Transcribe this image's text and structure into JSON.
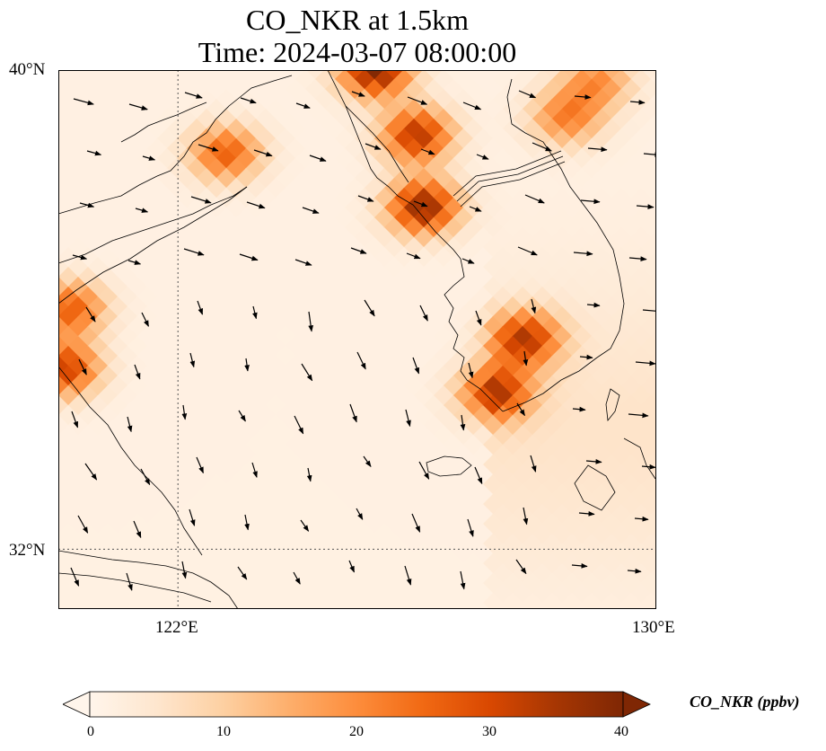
{
  "title_line1": "CO_NKR at 1.5km",
  "title_line2": "Time: 2024-03-07 08:00:00",
  "map": {
    "lat_ticks": [
      {
        "value": 40,
        "label": "40°N"
      },
      {
        "value": 32,
        "label": "32°N"
      }
    ],
    "lon_ticks": [
      {
        "value": 122,
        "label": "122°E"
      },
      {
        "value": 130,
        "label": "130°E"
      }
    ],
    "extent": {
      "lon_min": 120,
      "lon_max": 130,
      "lat_min": 31,
      "lat_max": 40
    },
    "gridlines": true,
    "field_name": "CO_NKR",
    "plume_hotspots": [
      {
        "lon": 125.3,
        "lat": 40.0,
        "value": 38
      },
      {
        "lon": 126.0,
        "lat": 38.9,
        "value": 32
      },
      {
        "lon": 126.1,
        "lat": 37.7,
        "value": 36
      },
      {
        "lon": 127.8,
        "lat": 35.5,
        "value": 30
      },
      {
        "lon": 127.3,
        "lat": 34.6,
        "value": 30
      },
      {
        "lon": 122.8,
        "lat": 38.6,
        "value": 25
      },
      {
        "lon": 120.1,
        "lat": 35.0,
        "value": 30
      },
      {
        "lon": 120.2,
        "lat": 36.0,
        "value": 25
      },
      {
        "lon": 128.5,
        "lat": 39.2,
        "value": 20
      },
      {
        "lon": 129.0,
        "lat": 39.8,
        "value": 18
      }
    ]
  },
  "colorbar": {
    "label": "CO_NKR (ppbv)",
    "min": 0,
    "max": 40,
    "ticks": [
      "0",
      "10",
      "20",
      "30",
      "40"
    ],
    "colors": [
      "#fff5eb",
      "#fee6ce",
      "#fdd0a2",
      "#fdae6b",
      "#fd8d3c",
      "#f16913",
      "#d94801",
      "#a63603",
      "#7f2704"
    ],
    "extend": "both"
  }
}
